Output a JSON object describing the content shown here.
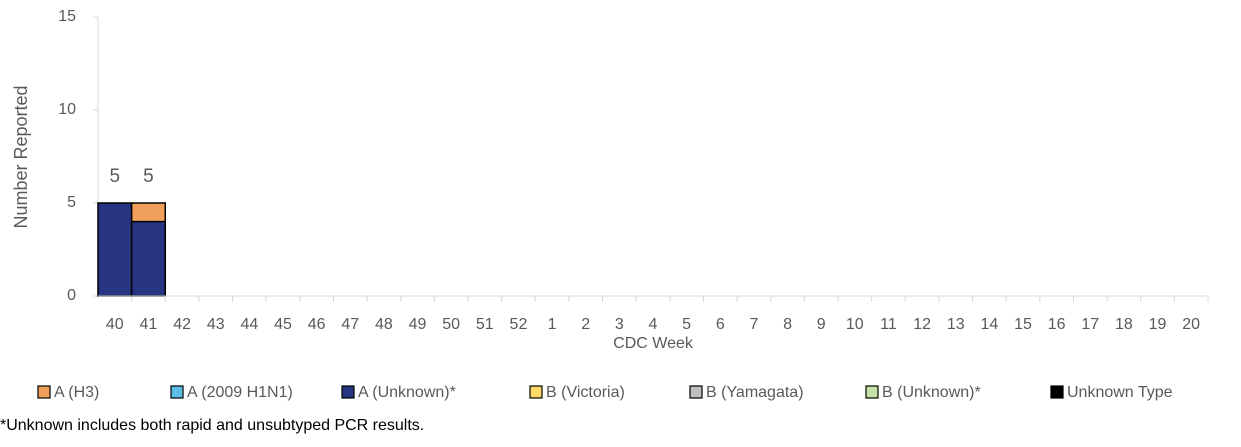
{
  "chart_data": {
    "type": "stacked_bar",
    "y_label": "Number Reported",
    "x_label": "CDC Week",
    "categories": [
      "40",
      "41",
      "42",
      "43",
      "44",
      "45",
      "46",
      "47",
      "48",
      "49",
      "50",
      "51",
      "52",
      "1",
      "2",
      "3",
      "4",
      "5",
      "6",
      "7",
      "8",
      "9",
      "10",
      "11",
      "12",
      "13",
      "14",
      "15",
      "16",
      "17",
      "18",
      "19",
      "20"
    ],
    "series": [
      {
        "name": "A (H3)",
        "color": "#f0a05a",
        "values": [
          0,
          1,
          0,
          0,
          0,
          0,
          0,
          0,
          0,
          0,
          0,
          0,
          0,
          0,
          0,
          0,
          0,
          0,
          0,
          0,
          0,
          0,
          0,
          0,
          0,
          0,
          0,
          0,
          0,
          0,
          0,
          0,
          0
        ]
      },
      {
        "name": "A (2009 H1N1)",
        "color": "#5bbde8",
        "values": [
          0,
          0,
          0,
          0,
          0,
          0,
          0,
          0,
          0,
          0,
          0,
          0,
          0,
          0,
          0,
          0,
          0,
          0,
          0,
          0,
          0,
          0,
          0,
          0,
          0,
          0,
          0,
          0,
          0,
          0,
          0,
          0,
          0
        ]
      },
      {
        "name": "A (Unknown)*",
        "color": "#283583",
        "values": [
          5,
          4,
          0,
          0,
          0,
          0,
          0,
          0,
          0,
          0,
          0,
          0,
          0,
          0,
          0,
          0,
          0,
          0,
          0,
          0,
          0,
          0,
          0,
          0,
          0,
          0,
          0,
          0,
          0,
          0,
          0,
          0,
          0
        ]
      },
      {
        "name": "B (Victoria)",
        "color": "#ffd966",
        "values": [
          0,
          0,
          0,
          0,
          0,
          0,
          0,
          0,
          0,
          0,
          0,
          0,
          0,
          0,
          0,
          0,
          0,
          0,
          0,
          0,
          0,
          0,
          0,
          0,
          0,
          0,
          0,
          0,
          0,
          0,
          0,
          0,
          0
        ]
      },
      {
        "name": "B (Yamagata)",
        "color": "#bfbfbf",
        "values": [
          0,
          0,
          0,
          0,
          0,
          0,
          0,
          0,
          0,
          0,
          0,
          0,
          0,
          0,
          0,
          0,
          0,
          0,
          0,
          0,
          0,
          0,
          0,
          0,
          0,
          0,
          0,
          0,
          0,
          0,
          0,
          0,
          0
        ]
      },
      {
        "name": "B (Unknown)*",
        "color": "#c5e0a5",
        "values": [
          0,
          0,
          0,
          0,
          0,
          0,
          0,
          0,
          0,
          0,
          0,
          0,
          0,
          0,
          0,
          0,
          0,
          0,
          0,
          0,
          0,
          0,
          0,
          0,
          0,
          0,
          0,
          0,
          0,
          0,
          0,
          0,
          0
        ]
      },
      {
        "name": "Unknown Type",
        "color": "#000000",
        "values": [
          0,
          0,
          0,
          0,
          0,
          0,
          0,
          0,
          0,
          0,
          0,
          0,
          0,
          0,
          0,
          0,
          0,
          0,
          0,
          0,
          0,
          0,
          0,
          0,
          0,
          0,
          0,
          0,
          0,
          0,
          0,
          0,
          0
        ]
      }
    ],
    "totals": [
      5,
      5,
      null,
      null,
      null,
      null,
      null,
      null,
      null,
      null,
      null,
      null,
      null,
      null,
      null,
      null,
      null,
      null,
      null,
      null,
      null,
      null,
      null,
      null,
      null,
      null,
      null,
      null,
      null,
      null,
      null,
      null,
      null
    ],
    "ylim": [
      0,
      15
    ],
    "yticks": [
      0,
      5,
      10,
      15
    ],
    "grid": false,
    "legend": "bottom",
    "note": "*Unknown includes both rapid and unsubtyped PCR results."
  }
}
